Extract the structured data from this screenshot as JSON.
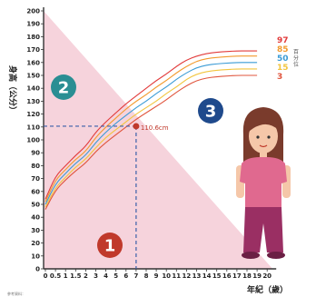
{
  "chart_data": {
    "type": "line",
    "title": "",
    "ylabel": "身高（公分）",
    "xlabel": "年紀（歲）",
    "ylim": [
      0,
      200
    ],
    "xlim": [
      0,
      20
    ],
    "y_ticks": [
      0,
      10,
      20,
      30,
      40,
      50,
      60,
      70,
      80,
      90,
      100,
      110,
      120,
      130,
      140,
      150,
      160,
      170,
      180,
      190,
      200
    ],
    "x_ticks": [
      {
        "v": 0,
        "t": "0"
      },
      {
        "v": 0.5,
        "t": "0.5"
      },
      {
        "v": 1,
        "t": "1"
      },
      {
        "v": 1.5,
        "t": "1.5"
      },
      {
        "v": 2,
        "t": "2"
      },
      {
        "v": 3,
        "t": "3"
      },
      {
        "v": 4,
        "t": "4"
      },
      {
        "v": 5,
        "t": "5"
      },
      {
        "v": 6,
        "t": "6"
      },
      {
        "v": 7,
        "t": "7"
      },
      {
        "v": 8,
        "t": "8"
      },
      {
        "v": 9,
        "t": "9"
      },
      {
        "v": 10,
        "t": "10"
      },
      {
        "v": 11,
        "t": "11"
      },
      {
        "v": 12,
        "t": "12"
      },
      {
        "v": 13,
        "t": "13"
      },
      {
        "v": 14,
        "t": "14"
      },
      {
        "v": 15,
        "t": "15"
      },
      {
        "v": 16,
        "t": "16"
      },
      {
        "v": 17,
        "t": "17"
      },
      {
        "v": 18,
        "t": "18"
      },
      {
        "v": 19,
        "t": "19"
      },
      {
        "v": 20,
        "t": "20"
      }
    ],
    "x": [
      0,
      0.5,
      1,
      1.5,
      2,
      3,
      4,
      5,
      6,
      7,
      8,
      9,
      10,
      11,
      12,
      13,
      14,
      15,
      16,
      17,
      18,
      19
    ],
    "series": [
      {
        "name": "97",
        "color": "#e23b3b",
        "values": [
          54,
          72,
          80,
          88,
          95,
          106,
          114,
          121,
          128,
          134,
          140,
          146,
          151,
          157,
          162,
          165,
          167,
          168,
          168.5,
          169,
          169,
          169
        ]
      },
      {
        "name": "85",
        "color": "#f29a2e",
        "values": [
          52,
          69,
          77,
          85,
          91,
          102,
          110,
          117,
          124,
          130,
          135,
          141,
          146,
          152,
          157,
          161,
          163,
          164,
          164.5,
          165,
          165,
          165
        ]
      },
      {
        "name": "50",
        "color": "#3a9bd5",
        "values": [
          50,
          66,
          74,
          82,
          88,
          98,
          106,
          113,
          119,
          125,
          130,
          136,
          141,
          147,
          152,
          156,
          158,
          159,
          159.5,
          160,
          160,
          160
        ]
      },
      {
        "name": "15",
        "color": "#f2c53d",
        "values": [
          48,
          63,
          71,
          79,
          85,
          94,
          102,
          108,
          114,
          120,
          125,
          130,
          136,
          141,
          147,
          151,
          153,
          154,
          154.5,
          155,
          155,
          155
        ]
      },
      {
        "name": "3",
        "color": "#e0543c",
        "values": [
          46,
          61,
          69,
          76,
          82,
          91,
          98,
          104,
          110,
          116,
          121,
          126,
          131,
          137,
          142,
          146,
          148,
          149,
          149.5,
          150,
          150,
          150
        ]
      }
    ],
    "series_label_words": [
      "百",
      "分",
      "位"
    ],
    "marker": {
      "x": 7,
      "y": 110.6,
      "label": "110.6cm",
      "color": "#c0392b"
    },
    "regions": [
      {
        "label": "1",
        "color": "#c0392b"
      },
      {
        "label": "2",
        "color": "#2a8e93"
      },
      {
        "label": "3",
        "color": "#1f4a8c"
      }
    ],
    "colors": {
      "region_fill": "#f6d3dc",
      "axis": "#333333",
      "dashed": "#3b5fa8"
    },
    "source_note": "參考資料："
  }
}
